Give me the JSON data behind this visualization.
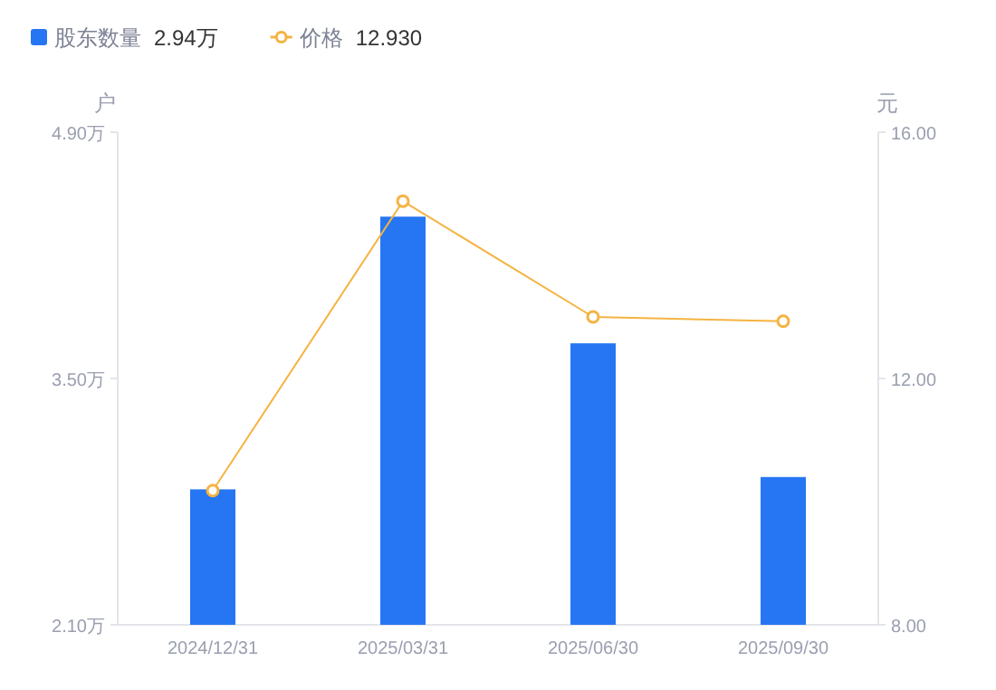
{
  "chart_data": {
    "type": "bar",
    "categories": [
      "2024/12/31",
      "2025/03/31",
      "2025/06/30",
      "2025/09/30"
    ],
    "series": [
      {
        "name": "股东数量",
        "color": "#2676f4",
        "values": [
          2.87,
          4.42,
          3.7,
          2.94
        ]
      },
      {
        "name": "价格",
        "type": "line",
        "axis": "y2",
        "color": "#f5b342",
        "marker": "circle",
        "values": [
          10.18,
          14.88,
          13.0,
          12.93
        ]
      }
    ],
    "annotations": [
      "2.94万",
      "12.930"
    ],
    "ylabel": "户",
    "y2label": "元",
    "ylim": [
      2.1,
      4.9
    ],
    "yticks": [
      {
        "value": 2.1,
        "label": "2.10万"
      },
      {
        "value": 3.5,
        "label": "3.50万"
      },
      {
        "value": 4.9,
        "label": "4.90万"
      }
    ],
    "y2lim": [
      8,
      16
    ],
    "y2ticks": [
      {
        "value": 8,
        "label": "8.00"
      },
      {
        "value": 12,
        "label": "12.00"
      },
      {
        "value": 16,
        "label": "16.00"
      }
    ],
    "legend": "top left"
  }
}
